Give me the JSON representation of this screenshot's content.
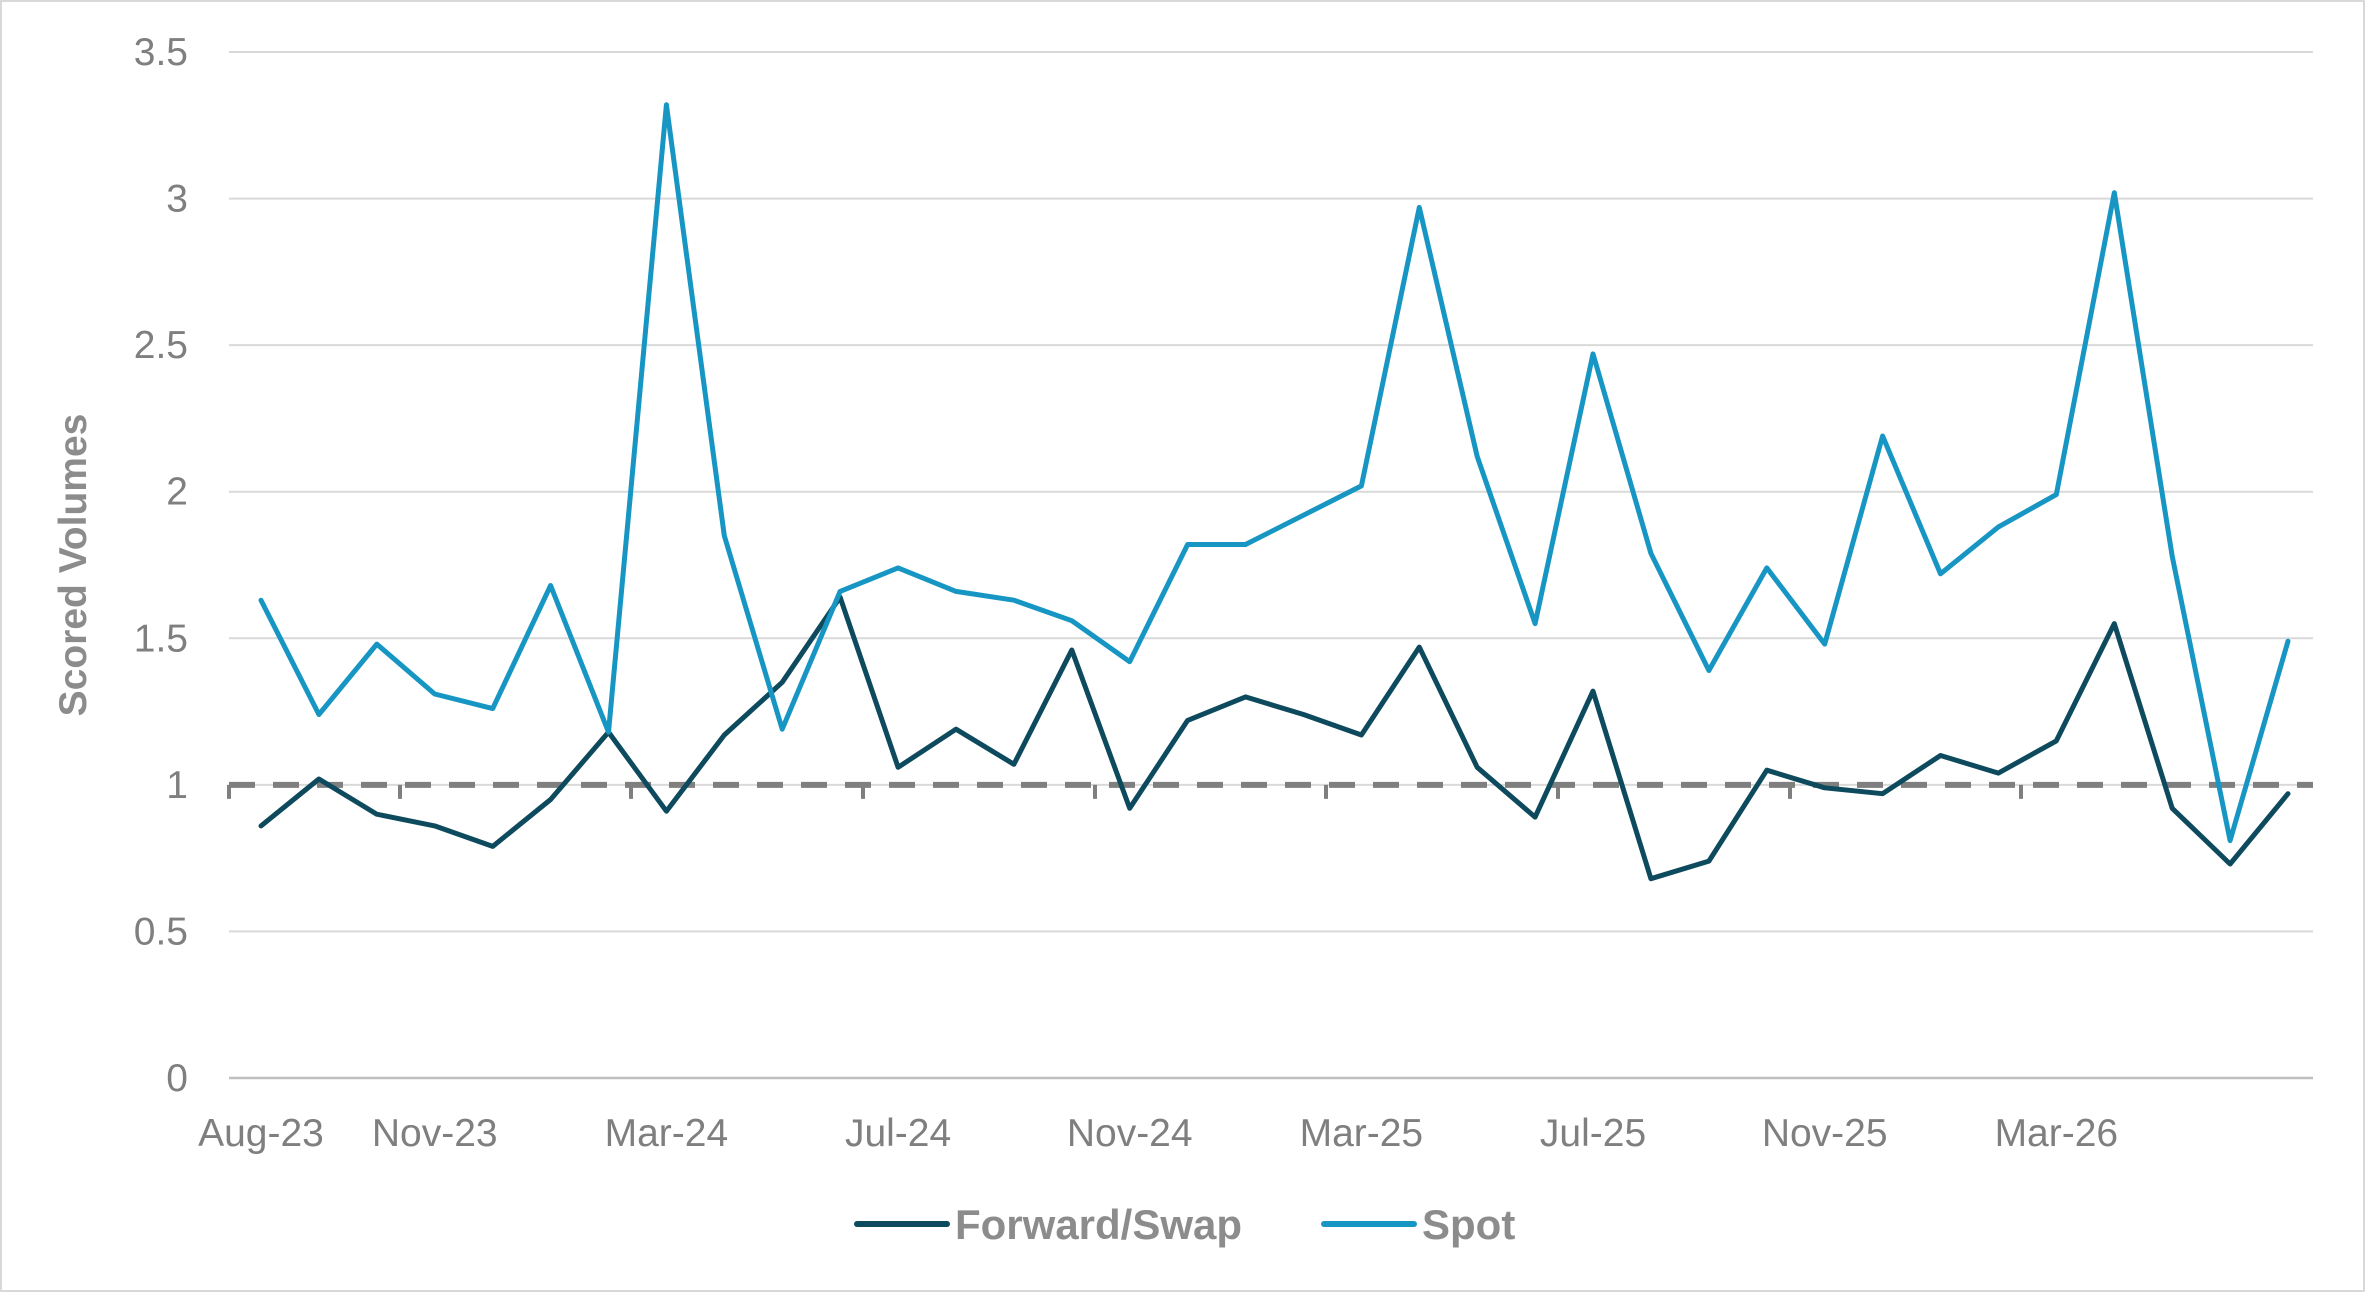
{
  "chart_data": {
    "type": "line",
    "xlabel": "",
    "ylabel": "Scored Volumes",
    "ylim": [
      0,
      3.5
    ],
    "yticks": [
      "0",
      "0.5",
      "1",
      "1.5",
      "2",
      "2.5",
      "3",
      "3.5"
    ],
    "x": [
      "Aug-23",
      "Sep-23",
      "Oct-23",
      "Nov-23",
      "Dec-23",
      "Jan-24",
      "Feb-24",
      "Mar-24",
      "Apr-24",
      "May-24",
      "Jun-24",
      "Jul-24",
      "Aug-24",
      "Sep-24",
      "Oct-24",
      "Nov-24",
      "Dec-24",
      "Jan-25",
      "Feb-25",
      "Mar-25",
      "Apr-25",
      "May-25",
      "Jun-25",
      "Jul-25",
      "Aug-25",
      "Sep-25",
      "Oct-25",
      "Nov-25",
      "Dec-25",
      "Jan-26",
      "Feb-26",
      "Mar-26",
      "Apr-26",
      "May-26",
      "Jun-26",
      "Jul-26"
    ],
    "xtick_labels": [
      "Aug-23",
      "Nov-23",
      "Mar-24",
      "Jul-24",
      "Nov-24",
      "Mar-25",
      "Jul-25",
      "Nov-25",
      "Mar-26"
    ],
    "xtick_indices": [
      0,
      3,
      7,
      11,
      15,
      19,
      23,
      27,
      31
    ],
    "series": [
      {
        "name": "Forward/Swap",
        "color": "#0e4a5e",
        "values": [
          0.86,
          1.02,
          0.9,
          0.86,
          0.79,
          0.95,
          1.18,
          0.91,
          1.17,
          1.35,
          1.64,
          1.06,
          1.19,
          1.07,
          1.46,
          0.92,
          1.22,
          1.3,
          1.24,
          1.17,
          1.47,
          1.06,
          0.89,
          1.32,
          0.68,
          0.74,
          1.05,
          0.99,
          0.97,
          1.1,
          1.04,
          1.15,
          1.55,
          0.92,
          0.73,
          0.97
        ]
      },
      {
        "name": "Spot",
        "color": "#1796c4",
        "values": [
          1.63,
          1.24,
          1.48,
          1.31,
          1.26,
          1.68,
          1.18,
          3.32,
          1.85,
          1.19,
          1.66,
          1.74,
          1.66,
          1.63,
          1.56,
          1.42,
          1.82,
          1.82,
          1.92,
          2.02,
          2.97,
          2.12,
          1.55,
          2.47,
          1.79,
          1.39,
          1.74,
          1.48,
          2.19,
          1.72,
          1.88,
          1.99,
          3.02,
          1.78,
          0.81,
          1.49
        ]
      }
    ],
    "reference_line": {
      "value": 1,
      "style": "dashed",
      "color": "#7f7f7f"
    },
    "grid": true,
    "legend": "bottom-center"
  }
}
